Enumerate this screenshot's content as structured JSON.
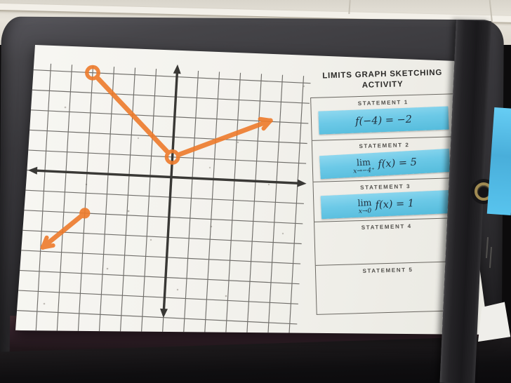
{
  "worksheet": {
    "title_line1": "LIMITS GRAPH SKETCHING",
    "title_line2": "ACTIVITY",
    "statements": [
      {
        "label": "STATEMENT 1",
        "card": {
          "type": "value",
          "expr": "f(−4) = −2"
        }
      },
      {
        "label": "STATEMENT 2",
        "card": {
          "type": "limit",
          "lim": "lim",
          "approach": "x→−4⁺",
          "expr": "f(x) = 5"
        }
      },
      {
        "label": "STATEMENT 3",
        "card": {
          "type": "limit",
          "lim": "lim",
          "approach": "x→0",
          "expr": "f(x) = 1"
        }
      },
      {
        "label": "STATEMENT 4",
        "card": null
      },
      {
        "label": "STATEMENT 5",
        "card": null
      }
    ]
  },
  "chart_data": {
    "type": "line",
    "title": "",
    "xlabel": "",
    "ylabel": "",
    "x_range": [
      -7,
      6
    ],
    "y_range": [
      -8,
      5
    ],
    "grid": true,
    "axes_arrows": true,
    "pieces": [
      {
        "kind": "ray",
        "from": [
          -4,
          -2
        ],
        "to": [
          -5.9,
          -3.8
        ],
        "from_marker": "closed",
        "arrow": true
      },
      {
        "kind": "segment",
        "from": [
          -4,
          5
        ],
        "to": [
          0,
          1
        ],
        "from_marker": "open",
        "to_marker": "open"
      },
      {
        "kind": "ray",
        "from": [
          0,
          1
        ],
        "to": [
          4.55,
          3.05
        ],
        "from_marker": "open_gap",
        "arrow": true
      }
    ],
    "open_circles": [
      [
        -4,
        5
      ],
      [
        0,
        1
      ]
    ],
    "closed_points": [
      [
        -4,
        -2
      ]
    ]
  },
  "colors": {
    "marker_orange": "#ee7a2b",
    "card_blue": "#6ac8e6",
    "paper": "#f4f3ee",
    "clipboard": "#343337",
    "wall": "#e4e0d7",
    "note_blue": "#55c2ec",
    "grid_line": "#504e4a",
    "axis": "#393835",
    "math_ink": "#22303e"
  }
}
